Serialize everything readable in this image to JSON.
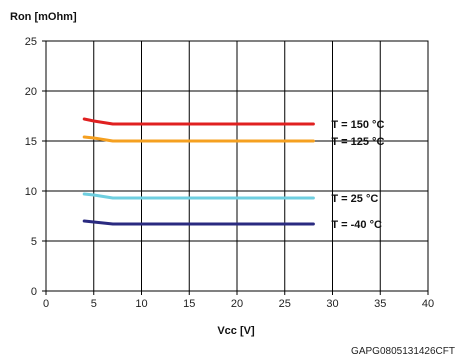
{
  "chart_data": {
    "type": "line",
    "ylabel": "Ron [mOhm]",
    "xlabel": "Vcc [V]",
    "xlim": [
      0,
      40
    ],
    "ylim": [
      0,
      25
    ],
    "xticks": [
      "0",
      "5",
      "10",
      "15",
      "20",
      "25",
      "30",
      "35",
      "40"
    ],
    "yticks": [
      "0",
      "5",
      "10",
      "15",
      "20",
      "25"
    ],
    "grid": true,
    "series": [
      {
        "name": "T = 150 °C",
        "color": "#e02020",
        "x": [
          4,
          5,
          7,
          10,
          15,
          20,
          25,
          28
        ],
        "y": [
          17.2,
          17.0,
          16.7,
          16.7,
          16.7,
          16.7,
          16.7,
          16.7
        ]
      },
      {
        "name": "T = 125 °C",
        "color": "#f5a020",
        "x": [
          4,
          5,
          7,
          10,
          15,
          20,
          25,
          28
        ],
        "y": [
          15.4,
          15.3,
          15.0,
          15.0,
          15.0,
          15.0,
          15.0,
          15.0
        ]
      },
      {
        "name": "T = 25 °C",
        "color": "#6fcfe0",
        "x": [
          4,
          5,
          7,
          10,
          15,
          20,
          25,
          28
        ],
        "y": [
          9.7,
          9.6,
          9.3,
          9.3,
          9.3,
          9.3,
          9.3,
          9.3
        ]
      },
      {
        "name": "T = -40 °C",
        "color": "#2a2a80",
        "x": [
          4,
          5,
          7,
          10,
          15,
          20,
          25,
          28
        ],
        "y": [
          7.0,
          6.9,
          6.7,
          6.7,
          6.7,
          6.7,
          6.7,
          6.7
        ]
      }
    ]
  },
  "footer_code": "GAPG0805131426CFT"
}
